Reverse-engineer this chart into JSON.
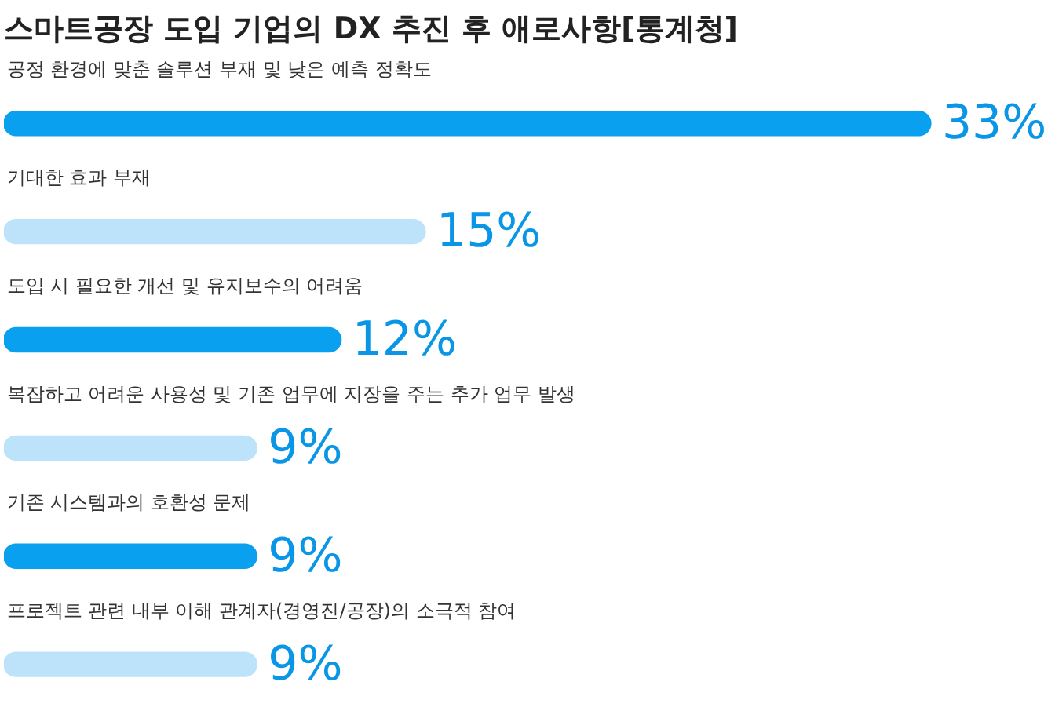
{
  "chart_data": {
    "type": "bar",
    "orientation": "horizontal",
    "title": "스마트공장 도입 기업의 DX 추진 후 애로사항[통계청]",
    "categories": [
      "공정 환경에 맞춘 솔루션 부재 및 낮은 예측 정확도",
      "기대한 효과 부재",
      "도입 시 필요한 개선 및 유지보수의 어려움",
      "복잡하고 어려운 사용성 및 기존 업무에 지장을 주는 추가 업무 발생",
      "기존 시스템과의 호환성 문제",
      "프로젝트 관련 내부 이해 관계자(경영진/공장)의 소극적 참여"
    ],
    "values": [
      33,
      15,
      12,
      9,
      9,
      9
    ],
    "colors": [
      "#0aa0f0",
      "#bde3fa",
      "#0aa0f0",
      "#bde3fa",
      "#0aa0f0",
      "#bde3fa"
    ],
    "value_labels": [
      "33%",
      "15%",
      "12%",
      "9%",
      "9%",
      "9%"
    ]
  }
}
